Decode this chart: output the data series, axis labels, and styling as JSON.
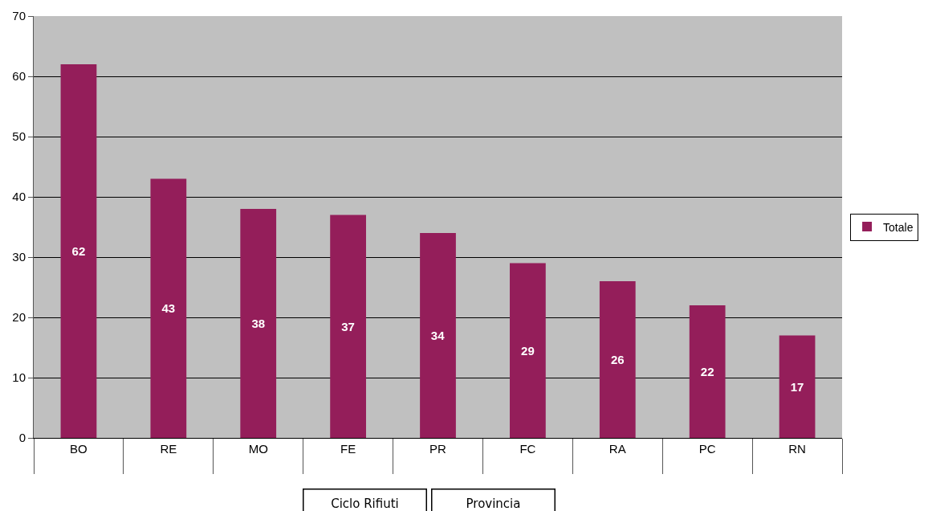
{
  "chart_data": {
    "type": "bar",
    "categories": [
      "BO",
      "RE",
      "MO",
      "FE",
      "PR",
      "FC",
      "RA",
      "PC",
      "RN"
    ],
    "series": [
      {
        "name": "Totale",
        "color": "#941e5a",
        "values": [
          62,
          43,
          38,
          37,
          34,
          29,
          26,
          22,
          17
        ]
      }
    ],
    "ylim": [
      0,
      70
    ],
    "yticks": [
      0,
      10,
      20,
      30,
      40,
      50,
      60,
      70
    ],
    "grid": "y",
    "legend": "right",
    "data_labels": true,
    "annotations": [
      "Ciclo Rifiuti",
      "Provincia"
    ]
  }
}
